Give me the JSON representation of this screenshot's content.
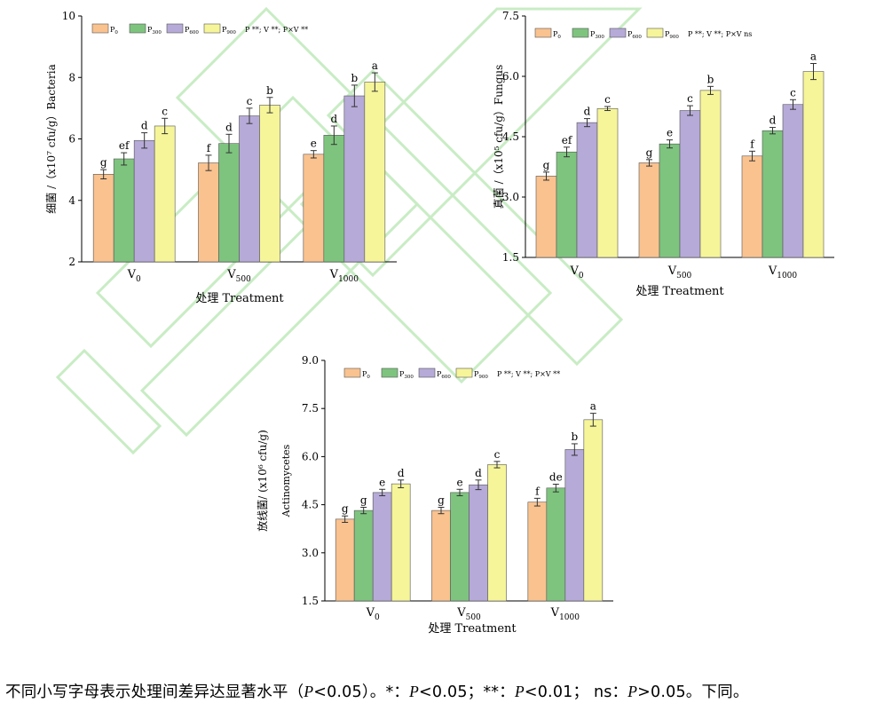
{
  "colors": {
    "series": [
      "#f9c28f",
      "#7ec47f",
      "#b6aad8",
      "#f6f59a"
    ],
    "watermark": "#c8ecc4"
  },
  "chart_data": [
    {
      "type": "bar",
      "ylabel": "细菌 /（x10⁷ cfu/g）Bacteria",
      "xlabel": "处理 Treatment",
      "ylim": [
        2,
        10
      ],
      "yticks": [
        "2",
        "4",
        "6",
        "8",
        "10"
      ],
      "categories": [
        "V0",
        "V500",
        "V1000"
      ],
      "category_main": [
        "V",
        "V",
        "V"
      ],
      "category_sub": [
        "0",
        "500",
        "1000"
      ],
      "legend_subs": [
        "0",
        "300",
        "600",
        "900"
      ],
      "stats_note": "P **;  V **;  P×V **",
      "series": [
        {
          "name": "P0",
          "values": [
            4.85,
            5.22,
            5.5
          ],
          "errors": [
            0.15,
            0.25,
            0.12
          ],
          "letters": [
            "g",
            "f",
            "e"
          ]
        },
        {
          "name": "P300",
          "values": [
            5.35,
            5.85,
            6.12
          ],
          "errors": [
            0.2,
            0.3,
            0.3
          ],
          "letters": [
            "ef",
            "d",
            "d"
          ]
        },
        {
          "name": "P600",
          "values": [
            5.95,
            6.75,
            7.4
          ],
          "errors": [
            0.25,
            0.25,
            0.35
          ],
          "letters": [
            "d",
            "c",
            "b"
          ]
        },
        {
          "name": "P900",
          "values": [
            6.42,
            7.1,
            7.85
          ],
          "errors": [
            0.25,
            0.25,
            0.3
          ],
          "letters": [
            "c",
            "b",
            "a"
          ]
        }
      ]
    },
    {
      "type": "bar",
      "ylabel": "真菌 /（x10⁵ cfu/g）Fungus",
      "xlabel": "处理 Treatment",
      "ylim": [
        1.5,
        7.5
      ],
      "yticks": [
        "1.5",
        "3.0",
        "4.5",
        "6.0",
        "7.5"
      ],
      "categories": [
        "V0",
        "V500",
        "V1000"
      ],
      "category_main": [
        "V",
        "V",
        "V"
      ],
      "category_sub": [
        "0",
        "500",
        "1000"
      ],
      "legend_subs": [
        "0",
        "300",
        "600",
        "900"
      ],
      "stats_note": "P **;  V **;  P×V ns",
      "series": [
        {
          "name": "P0",
          "values": [
            3.52,
            3.85,
            4.02
          ],
          "errors": [
            0.1,
            0.08,
            0.12
          ],
          "letters": [
            "g",
            "g",
            "f"
          ]
        },
        {
          "name": "P300",
          "values": [
            4.12,
            4.32,
            4.65
          ],
          "errors": [
            0.12,
            0.1,
            0.08
          ],
          "letters": [
            "ef",
            "e",
            "d"
          ]
        },
        {
          "name": "P600",
          "values": [
            4.85,
            5.15,
            5.3
          ],
          "errors": [
            0.1,
            0.12,
            0.12
          ],
          "letters": [
            "d",
            "c",
            "c"
          ]
        },
        {
          "name": "P900",
          "values": [
            5.2,
            5.65,
            6.12
          ],
          "errors": [
            0.05,
            0.1,
            0.2
          ],
          "letters": [
            "c",
            "b",
            "a"
          ]
        }
      ]
    },
    {
      "type": "bar",
      "ylabel": "放线菌/ (x10⁶ cfu/g)",
      "ylabel2": "Actinomycetes",
      "xlabel": "处理 Treatment",
      "ylim": [
        1.5,
        9.0
      ],
      "yticks": [
        "1.5",
        "3.0",
        "4.5",
        "6.0",
        "7.5",
        "9.0"
      ],
      "categories": [
        "V0",
        "V500",
        "V1000"
      ],
      "category_main": [
        "V",
        "V",
        "V"
      ],
      "category_sub": [
        "0",
        "500",
        "1000"
      ],
      "legend_subs": [
        "0",
        "300",
        "600",
        "900"
      ],
      "stats_note": "P **;  V **;  P×V **",
      "series": [
        {
          "name": "P0",
          "values": [
            4.05,
            4.32,
            4.58
          ],
          "errors": [
            0.1,
            0.1,
            0.12
          ],
          "letters": [
            "g",
            "g",
            "f"
          ]
        },
        {
          "name": "P300",
          "values": [
            4.32,
            4.88,
            5.02
          ],
          "errors": [
            0.1,
            0.1,
            0.12
          ],
          "letters": [
            "g",
            "e",
            "de"
          ]
        },
        {
          "name": "P600",
          "values": [
            4.88,
            5.12,
            6.22
          ],
          "errors": [
            0.1,
            0.15,
            0.18
          ],
          "letters": [
            "e",
            "d",
            "b"
          ]
        },
        {
          "name": "P900",
          "values": [
            5.15,
            5.75,
            7.15
          ],
          "errors": [
            0.12,
            0.1,
            0.2
          ],
          "letters": [
            "d",
            "c",
            "a"
          ]
        }
      ]
    }
  ],
  "caption": {
    "part1": "不同小写字母表示处理间差异达显著水平（",
    "p1": "P",
    "part2": "<0.05）。*：",
    "p2": "P",
    "part3": "<0.05；**：",
    "p3": "P",
    "part4": "<0.01； ns：",
    "p4": "P",
    "part5": ">0.05。下同。"
  }
}
